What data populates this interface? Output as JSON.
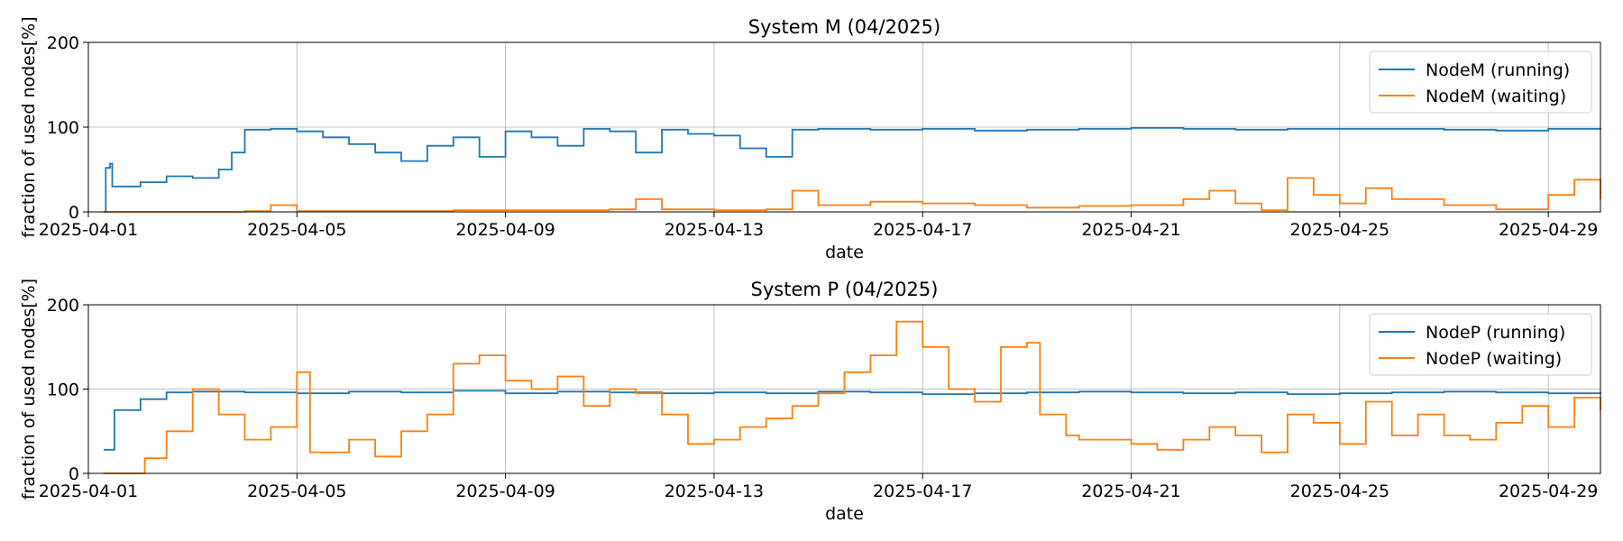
{
  "chart_data": [
    {
      "type": "line",
      "title": "System M (04/2025)",
      "xlabel": "date",
      "ylabel": "fraction of used nodes[%]",
      "xlim": [
        "2025-04-01",
        "2025-04-30"
      ],
      "ylim": [
        0,
        200
      ],
      "yticks": [
        0,
        100,
        200
      ],
      "xticks": [
        "2025-04-01",
        "2025-04-05",
        "2025-04-09",
        "2025-04-13",
        "2025-04-17",
        "2025-04-21",
        "2025-04-25",
        "2025-04-29"
      ],
      "grid": true,
      "legend_position": "top-right",
      "series": [
        {
          "name": "NodeM (running)",
          "color": "#1f77b4",
          "points": [
            [
              "2025-04-01T07:00",
              0
            ],
            [
              "2025-04-01T08:00",
              52
            ],
            [
              "2025-04-01T10:00",
              57
            ],
            [
              "2025-04-01T11:00",
              30
            ],
            [
              "2025-04-02T00:00",
              35
            ],
            [
              "2025-04-02T12:00",
              42
            ],
            [
              "2025-04-03T00:00",
              40
            ],
            [
              "2025-04-03T12:00",
              50
            ],
            [
              "2025-04-03T18:00",
              70
            ],
            [
              "2025-04-04T00:00",
              97
            ],
            [
              "2025-04-04T12:00",
              98
            ],
            [
              "2025-04-05T00:00",
              95
            ],
            [
              "2025-04-05T12:00",
              88
            ],
            [
              "2025-04-06T00:00",
              80
            ],
            [
              "2025-04-06T12:00",
              70
            ],
            [
              "2025-04-07T00:00",
              60
            ],
            [
              "2025-04-07T12:00",
              78
            ],
            [
              "2025-04-08T00:00",
              88
            ],
            [
              "2025-04-08T12:00",
              65
            ],
            [
              "2025-04-09T00:00",
              95
            ],
            [
              "2025-04-09T12:00",
              88
            ],
            [
              "2025-04-10T00:00",
              78
            ],
            [
              "2025-04-10T12:00",
              98
            ],
            [
              "2025-04-11T00:00",
              95
            ],
            [
              "2025-04-11T12:00",
              70
            ],
            [
              "2025-04-12T00:00",
              97
            ],
            [
              "2025-04-12T12:00",
              92
            ],
            [
              "2025-04-13T00:00",
              90
            ],
            [
              "2025-04-13T12:00",
              75
            ],
            [
              "2025-04-14T00:00",
              65
            ],
            [
              "2025-04-14T12:00",
              97
            ],
            [
              "2025-04-15T00:00",
              98
            ],
            [
              "2025-04-16T00:00",
              97
            ],
            [
              "2025-04-17T00:00",
              98
            ],
            [
              "2025-04-18T00:00",
              96
            ],
            [
              "2025-04-19T00:00",
              97
            ],
            [
              "2025-04-20T00:00",
              98
            ],
            [
              "2025-04-21T00:00",
              99
            ],
            [
              "2025-04-22T00:00",
              98
            ],
            [
              "2025-04-23T00:00",
              97
            ],
            [
              "2025-04-24T00:00",
              98
            ],
            [
              "2025-04-25T00:00",
              98
            ],
            [
              "2025-04-26T00:00",
              98
            ],
            [
              "2025-04-27T00:00",
              97
            ],
            [
              "2025-04-28T00:00",
              96
            ],
            [
              "2025-04-29T00:00",
              98
            ],
            [
              "2025-04-30T00:00",
              97
            ]
          ]
        },
        {
          "name": "NodeM (waiting)",
          "color": "#ff7f0e",
          "points": [
            [
              "2025-04-01T07:00",
              0
            ],
            [
              "2025-04-04T00:00",
              1
            ],
            [
              "2025-04-04T12:00",
              8
            ],
            [
              "2025-04-05T00:00",
              1
            ],
            [
              "2025-04-08T00:00",
              2
            ],
            [
              "2025-04-11T00:00",
              3
            ],
            [
              "2025-04-11T12:00",
              15
            ],
            [
              "2025-04-12T00:00",
              3
            ],
            [
              "2025-04-13T00:00",
              2
            ],
            [
              "2025-04-14T00:00",
              3
            ],
            [
              "2025-04-14T12:00",
              25
            ],
            [
              "2025-04-15T00:00",
              8
            ],
            [
              "2025-04-16T00:00",
              12
            ],
            [
              "2025-04-17T00:00",
              10
            ],
            [
              "2025-04-18T00:00",
              8
            ],
            [
              "2025-04-19T00:00",
              5
            ],
            [
              "2025-04-20T00:00",
              7
            ],
            [
              "2025-04-21T00:00",
              8
            ],
            [
              "2025-04-22T00:00",
              15
            ],
            [
              "2025-04-22T12:00",
              25
            ],
            [
              "2025-04-23T00:00",
              10
            ],
            [
              "2025-04-23T12:00",
              2
            ],
            [
              "2025-04-24T00:00",
              40
            ],
            [
              "2025-04-24T12:00",
              20
            ],
            [
              "2025-04-25T00:00",
              10
            ],
            [
              "2025-04-25T12:00",
              28
            ],
            [
              "2025-04-26T00:00",
              15
            ],
            [
              "2025-04-27T00:00",
              8
            ],
            [
              "2025-04-28T00:00",
              3
            ],
            [
              "2025-04-29T00:00",
              20
            ],
            [
              "2025-04-29T12:00",
              38
            ],
            [
              "2025-04-30T00:00",
              15
            ]
          ]
        }
      ]
    },
    {
      "type": "line",
      "title": "System P (04/2025)",
      "xlabel": "date",
      "ylabel": "fraction of used nodes[%]",
      "xlim": [
        "2025-04-01",
        "2025-04-30"
      ],
      "ylim": [
        0,
        200
      ],
      "yticks": [
        0,
        100,
        200
      ],
      "xticks": [
        "2025-04-01",
        "2025-04-05",
        "2025-04-09",
        "2025-04-13",
        "2025-04-17",
        "2025-04-21",
        "2025-04-25",
        "2025-04-29"
      ],
      "grid": true,
      "legend_position": "top-right",
      "series": [
        {
          "name": "NodeP (running)",
          "color": "#1f77b4",
          "points": [
            [
              "2025-04-01T07:00",
              28
            ],
            [
              "2025-04-01T12:00",
              75
            ],
            [
              "2025-04-02T00:00",
              88
            ],
            [
              "2025-04-02T12:00",
              96
            ],
            [
              "2025-04-03T00:00",
              97
            ],
            [
              "2025-04-04T00:00",
              96
            ],
            [
              "2025-04-05T00:00",
              95
            ],
            [
              "2025-04-06T00:00",
              97
            ],
            [
              "2025-04-07T00:00",
              96
            ],
            [
              "2025-04-08T00:00",
              98
            ],
            [
              "2025-04-09T00:00",
              95
            ],
            [
              "2025-04-10T00:00",
              97
            ],
            [
              "2025-04-11T00:00",
              96
            ],
            [
              "2025-04-12T00:00",
              95
            ],
            [
              "2025-04-13T00:00",
              96
            ],
            [
              "2025-04-14T00:00",
              95
            ],
            [
              "2025-04-15T00:00",
              97
            ],
            [
              "2025-04-16T00:00",
              96
            ],
            [
              "2025-04-17T00:00",
              94
            ],
            [
              "2025-04-18T00:00",
              95
            ],
            [
              "2025-04-19T00:00",
              96
            ],
            [
              "2025-04-20T00:00",
              97
            ],
            [
              "2025-04-21T00:00",
              96
            ],
            [
              "2025-04-22T00:00",
              95
            ],
            [
              "2025-04-23T00:00",
              96
            ],
            [
              "2025-04-24T00:00",
              94
            ],
            [
              "2025-04-25T00:00",
              95
            ],
            [
              "2025-04-26T00:00",
              96
            ],
            [
              "2025-04-27T00:00",
              97
            ],
            [
              "2025-04-28T00:00",
              96
            ],
            [
              "2025-04-29T00:00",
              95
            ],
            [
              "2025-04-30T00:00",
              96
            ]
          ]
        },
        {
          "name": "NodeP (waiting)",
          "color": "#ff7f0e",
          "points": [
            [
              "2025-04-01T07:00",
              0
            ],
            [
              "2025-04-02T00:00",
              0
            ],
            [
              "2025-04-02T02:00",
              18
            ],
            [
              "2025-04-02T12:00",
              50
            ],
            [
              "2025-04-03T00:00",
              100
            ],
            [
              "2025-04-03T12:00",
              70
            ],
            [
              "2025-04-04T00:00",
              40
            ],
            [
              "2025-04-04T12:00",
              55
            ],
            [
              "2025-04-05T00:00",
              120
            ],
            [
              "2025-04-05T06:00",
              25
            ],
            [
              "2025-04-06T00:00",
              40
            ],
            [
              "2025-04-06T12:00",
              20
            ],
            [
              "2025-04-07T00:00",
              50
            ],
            [
              "2025-04-07T12:00",
              70
            ],
            [
              "2025-04-08T00:00",
              130
            ],
            [
              "2025-04-08T12:00",
              140
            ],
            [
              "2025-04-09T00:00",
              110
            ],
            [
              "2025-04-09T12:00",
              100
            ],
            [
              "2025-04-10T00:00",
              115
            ],
            [
              "2025-04-10T12:00",
              80
            ],
            [
              "2025-04-11T00:00",
              100
            ],
            [
              "2025-04-11T12:00",
              95
            ],
            [
              "2025-04-12T00:00",
              70
            ],
            [
              "2025-04-12T12:00",
              35
            ],
            [
              "2025-04-13T00:00",
              40
            ],
            [
              "2025-04-13T12:00",
              55
            ],
            [
              "2025-04-14T00:00",
              65
            ],
            [
              "2025-04-14T12:00",
              80
            ],
            [
              "2025-04-15T00:00",
              95
            ],
            [
              "2025-04-15T12:00",
              120
            ],
            [
              "2025-04-16T00:00",
              140
            ],
            [
              "2025-04-16T12:00",
              180
            ],
            [
              "2025-04-17T00:00",
              150
            ],
            [
              "2025-04-17T12:00",
              100
            ],
            [
              "2025-04-18T00:00",
              85
            ],
            [
              "2025-04-18T12:00",
              150
            ],
            [
              "2025-04-19T00:00",
              155
            ],
            [
              "2025-04-19T06:00",
              70
            ],
            [
              "2025-04-19T18:00",
              45
            ],
            [
              "2025-04-20T00:00",
              40
            ],
            [
              "2025-04-21T00:00",
              35
            ],
            [
              "2025-04-21T12:00",
              28
            ],
            [
              "2025-04-22T00:00",
              40
            ],
            [
              "2025-04-22T12:00",
              55
            ],
            [
              "2025-04-23T00:00",
              45
            ],
            [
              "2025-04-23T12:00",
              25
            ],
            [
              "2025-04-24T00:00",
              70
            ],
            [
              "2025-04-24T12:00",
              60
            ],
            [
              "2025-04-25T00:00",
              35
            ],
            [
              "2025-04-25T12:00",
              85
            ],
            [
              "2025-04-26T00:00",
              45
            ],
            [
              "2025-04-26T12:00",
              70
            ],
            [
              "2025-04-27T00:00",
              45
            ],
            [
              "2025-04-27T12:00",
              40
            ],
            [
              "2025-04-28T00:00",
              60
            ],
            [
              "2025-04-28T12:00",
              80
            ],
            [
              "2025-04-29T00:00",
              55
            ],
            [
              "2025-04-29T12:00",
              90
            ],
            [
              "2025-04-30T00:00",
              75
            ]
          ]
        }
      ]
    }
  ]
}
